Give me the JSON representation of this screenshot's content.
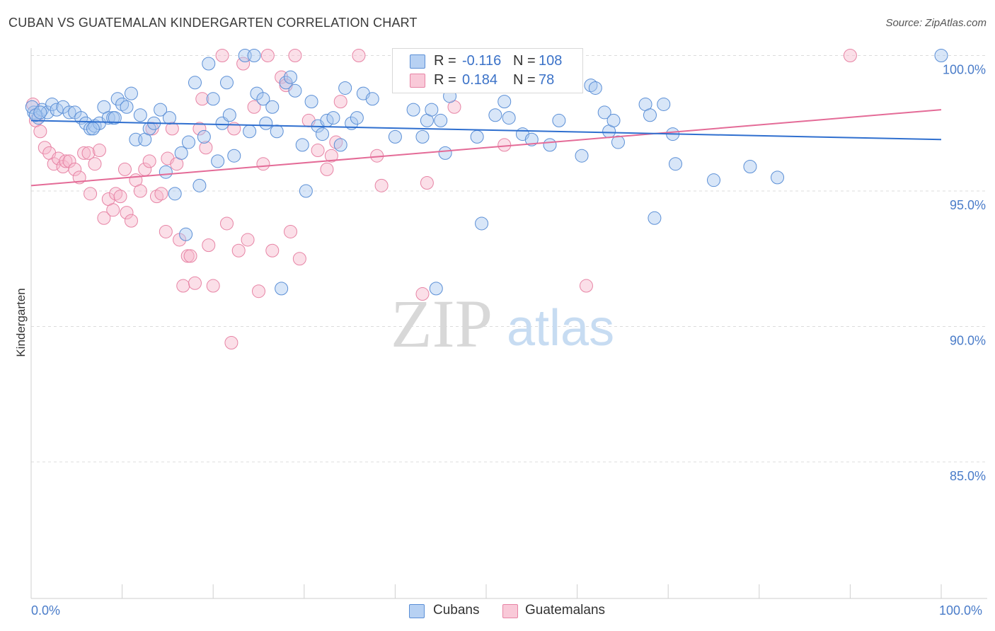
{
  "title": "CUBAN VS GUATEMALAN KINDERGARTEN CORRELATION CHART",
  "source": "Source: ZipAtlas.com",
  "watermark": {
    "zip": "ZIP",
    "atlas": "atlas"
  },
  "legend": {
    "rows": [
      {
        "r_label": "R =",
        "r_value": "-0.116",
        "n_label": "N =",
        "n_value": "108"
      },
      {
        "r_label": "R =",
        "r_value": "0.184",
        "n_label": "N =",
        "n_value": "78"
      }
    ]
  },
  "bottom_legend": {
    "series1": "Cubans",
    "series2": "Guatemalans"
  },
  "colors": {
    "cubans_fill": "#a9c8f0",
    "cubans_stroke": "#5b8fd6",
    "cubans_line": "#2f6fcf",
    "guatemalans_fill": "#f7b8cc",
    "guatemalans_stroke": "#e784a5",
    "guatemalans_line": "#e46b97",
    "tick_label": "#4a7cc9",
    "grid": "#dcdcdc"
  },
  "chart_data": {
    "type": "scatter",
    "title": "CUBAN VS GUATEMALAN KINDERGARTEN CORRELATION CHART",
    "xlabel": "",
    "ylabel": "Kindergarten",
    "xlim": [
      0,
      100
    ],
    "ylim": [
      80.5,
      100.8
    ],
    "x_tick_labels": [
      "0.0%",
      "100.0%"
    ],
    "y_ticks": [
      85,
      90,
      95,
      100
    ],
    "y_tick_labels": [
      "85.0%",
      "90.0%",
      "95.0%",
      "100.0%"
    ],
    "grid": "horizontal dashed",
    "legend_position": "top-center",
    "series": [
      {
        "name": "Cubans",
        "R": -0.116,
        "N": 108,
        "trend": {
          "x": [
            0,
            100
          ],
          "y": [
            97.6,
            96.9
          ]
        },
        "points": [
          [
            0.3,
            97.9
          ],
          [
            0.8,
            97.7
          ],
          [
            1.2,
            98.0
          ],
          [
            1.8,
            97.9
          ],
          [
            2.3,
            98.2
          ],
          [
            2.8,
            98.0
          ],
          [
            3.5,
            98.1
          ],
          [
            4.2,
            97.9
          ],
          [
            4.8,
            97.9
          ],
          [
            5.5,
            97.7
          ],
          [
            6.0,
            97.5
          ],
          [
            6.5,
            97.3
          ],
          [
            7.0,
            97.4
          ],
          [
            7.5,
            97.5
          ],
          [
            8.0,
            98.1
          ],
          [
            8.5,
            97.7
          ],
          [
            9.0,
            97.7
          ],
          [
            9.5,
            98.4
          ],
          [
            10.0,
            98.2
          ],
          [
            10.5,
            98.1
          ],
          [
            11.0,
            98.6
          ],
          [
            11.5,
            96.9
          ],
          [
            12.0,
            97.8
          ],
          [
            12.5,
            96.9
          ],
          [
            13.0,
            97.3
          ],
          [
            13.5,
            97.5
          ],
          [
            14.2,
            98.0
          ],
          [
            14.8,
            95.7
          ],
          [
            15.2,
            97.7
          ],
          [
            15.8,
            94.9
          ],
          [
            16.5,
            96.4
          ],
          [
            17.0,
            93.4
          ],
          [
            17.3,
            96.8
          ],
          [
            18.0,
            99.0
          ],
          [
            18.5,
            95.2
          ],
          [
            19.0,
            97.0
          ],
          [
            19.5,
            99.7
          ],
          [
            20.0,
            98.4
          ],
          [
            20.5,
            96.1
          ],
          [
            21.0,
            97.5
          ],
          [
            21.5,
            99.0
          ],
          [
            21.8,
            97.8
          ],
          [
            22.3,
            96.3
          ],
          [
            23.5,
            100.0
          ],
          [
            24.0,
            97.2
          ],
          [
            24.5,
            100.0
          ],
          [
            24.8,
            98.6
          ],
          [
            25.5,
            98.4
          ],
          [
            25.8,
            97.5
          ],
          [
            26.5,
            98.1
          ],
          [
            27.0,
            97.2
          ],
          [
            27.5,
            91.4
          ],
          [
            28.0,
            99.0
          ],
          [
            28.5,
            99.2
          ],
          [
            29.0,
            98.7
          ],
          [
            29.8,
            96.7
          ],
          [
            30.2,
            95.0
          ],
          [
            30.8,
            98.3
          ],
          [
            31.5,
            97.4
          ],
          [
            32.0,
            97.1
          ],
          [
            32.5,
            97.6
          ],
          [
            33.2,
            97.7
          ],
          [
            34.0,
            96.7
          ],
          [
            34.5,
            98.8
          ],
          [
            35.2,
            97.5
          ],
          [
            35.8,
            97.7
          ],
          [
            36.5,
            98.6
          ],
          [
            37.5,
            98.4
          ],
          [
            40.0,
            97.0
          ],
          [
            42.0,
            98.0
          ],
          [
            43.0,
            97.0
          ],
          [
            43.5,
            97.6
          ],
          [
            44.0,
            98.0
          ],
          [
            44.5,
            91.4
          ],
          [
            45.0,
            97.6
          ],
          [
            45.5,
            96.4
          ],
          [
            46.0,
            98.5
          ],
          [
            49.0,
            97.0
          ],
          [
            49.5,
            93.8
          ],
          [
            51.0,
            97.8
          ],
          [
            52.0,
            98.3
          ],
          [
            52.5,
            97.7
          ],
          [
            54.0,
            97.1
          ],
          [
            55.0,
            96.9
          ],
          [
            57.0,
            96.7
          ],
          [
            58.0,
            97.6
          ],
          [
            60.5,
            96.3
          ],
          [
            61.5,
            98.9
          ],
          [
            62.0,
            98.8
          ],
          [
            63.0,
            97.9
          ],
          [
            63.5,
            97.2
          ],
          [
            64.0,
            97.6
          ],
          [
            64.5,
            96.8
          ],
          [
            67.5,
            98.2
          ],
          [
            68.0,
            97.8
          ],
          [
            68.5,
            94.0
          ],
          [
            69.5,
            98.2
          ],
          [
            70.5,
            97.1
          ],
          [
            70.8,
            96.0
          ],
          [
            75.0,
            95.4
          ],
          [
            79.0,
            95.9
          ],
          [
            82.0,
            95.5
          ],
          [
            100.0,
            100.0
          ],
          [
            0.1,
            98.1
          ],
          [
            0.5,
            97.8
          ],
          [
            1.0,
            97.9
          ],
          [
            6.8,
            97.3
          ],
          [
            9.2,
            97.7
          ]
        ]
      },
      {
        "name": "Guatemalans",
        "R": 0.184,
        "N": 78,
        "trend": {
          "x": [
            0,
            100
          ],
          "y": [
            95.2,
            98.0
          ]
        },
        "points": [
          [
            0.2,
            98.2
          ],
          [
            0.5,
            97.6
          ],
          [
            1.0,
            97.2
          ],
          [
            1.5,
            96.6
          ],
          [
            2.0,
            96.4
          ],
          [
            2.5,
            96.0
          ],
          [
            3.0,
            96.2
          ],
          [
            3.5,
            95.9
          ],
          [
            3.8,
            96.1
          ],
          [
            4.2,
            96.1
          ],
          [
            4.8,
            95.8
          ],
          [
            5.3,
            95.5
          ],
          [
            5.8,
            96.4
          ],
          [
            6.3,
            96.4
          ],
          [
            6.5,
            94.9
          ],
          [
            7.0,
            96.0
          ],
          [
            7.5,
            96.5
          ],
          [
            8.0,
            94.0
          ],
          [
            8.5,
            94.7
          ],
          [
            9.0,
            94.3
          ],
          [
            9.3,
            94.9
          ],
          [
            9.8,
            94.8
          ],
          [
            10.3,
            95.8
          ],
          [
            10.5,
            94.2
          ],
          [
            11.0,
            93.9
          ],
          [
            11.5,
            95.4
          ],
          [
            12.0,
            95.0
          ],
          [
            12.5,
            95.8
          ],
          [
            13.0,
            96.1
          ],
          [
            13.3,
            97.3
          ],
          [
            13.8,
            94.8
          ],
          [
            14.3,
            94.9
          ],
          [
            14.8,
            93.5
          ],
          [
            15.0,
            96.2
          ],
          [
            15.5,
            97.3
          ],
          [
            16.0,
            96.0
          ],
          [
            16.3,
            93.2
          ],
          [
            16.7,
            91.5
          ],
          [
            17.2,
            92.6
          ],
          [
            17.5,
            92.6
          ],
          [
            18.0,
            91.6
          ],
          [
            18.5,
            97.3
          ],
          [
            18.8,
            98.4
          ],
          [
            19.2,
            96.6
          ],
          [
            19.5,
            93.0
          ],
          [
            20.0,
            91.5
          ],
          [
            21.0,
            100.0
          ],
          [
            21.5,
            93.8
          ],
          [
            22.0,
            89.4
          ],
          [
            22.3,
            97.3
          ],
          [
            22.8,
            92.8
          ],
          [
            23.3,
            99.7
          ],
          [
            23.8,
            93.2
          ],
          [
            24.5,
            98.1
          ],
          [
            25.0,
            91.3
          ],
          [
            25.5,
            96.0
          ],
          [
            26.0,
            100.0
          ],
          [
            26.5,
            92.8
          ],
          [
            27.5,
            99.2
          ],
          [
            28.0,
            98.9
          ],
          [
            28.5,
            93.5
          ],
          [
            29.0,
            100.0
          ],
          [
            29.5,
            92.5
          ],
          [
            30.5,
            97.6
          ],
          [
            31.5,
            96.5
          ],
          [
            32.5,
            95.8
          ],
          [
            33.0,
            96.3
          ],
          [
            33.5,
            96.8
          ],
          [
            34.0,
            98.3
          ],
          [
            36.0,
            100.0
          ],
          [
            38.0,
            96.3
          ],
          [
            38.5,
            95.2
          ],
          [
            43.0,
            91.2
          ],
          [
            43.5,
            95.3
          ],
          [
            46.5,
            98.1
          ],
          [
            52.0,
            96.7
          ],
          [
            61.0,
            91.5
          ],
          [
            90.0,
            100.0
          ]
        ]
      }
    ]
  }
}
